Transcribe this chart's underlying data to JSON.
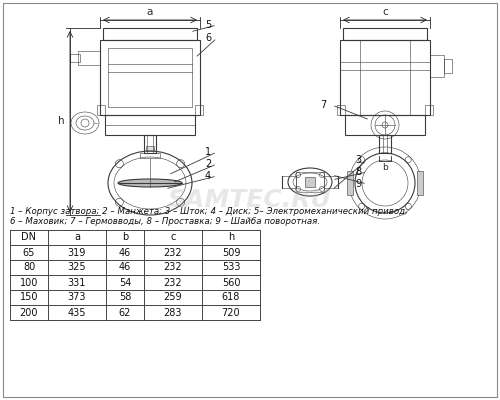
{
  "background_color": "#ffffff",
  "legend_text": "1 – Корпус затвора; 2 – Манжета; 3 – Шток; 4 – Диск; 5– Электромеханический привод;",
  "legend_text2": "6 – Маховик; 7 – Гермовводы, 8 – Проставка; 9 – Шайба поворотная.",
  "table_headers": [
    "DN",
    "a",
    "b",
    "c",
    "h"
  ],
  "table_data": [
    [
      "65",
      "319",
      "46",
      "232",
      "509"
    ],
    [
      "80",
      "325",
      "46",
      "232",
      "533"
    ],
    [
      "100",
      "331",
      "54",
      "232",
      "560"
    ],
    [
      "150",
      "373",
      "58",
      "259",
      "618"
    ],
    [
      "200",
      "435",
      "62",
      "283",
      "720"
    ]
  ],
  "watermark": "SAMTEC.RU",
  "line_color": "#3a3a3a",
  "dim_color": "#2a2a2a",
  "table_line_color": "#444444",
  "font_size_legend": 6.2,
  "font_size_table": 7.0,
  "font_size_labels": 7,
  "font_size_dim": 7.5
}
